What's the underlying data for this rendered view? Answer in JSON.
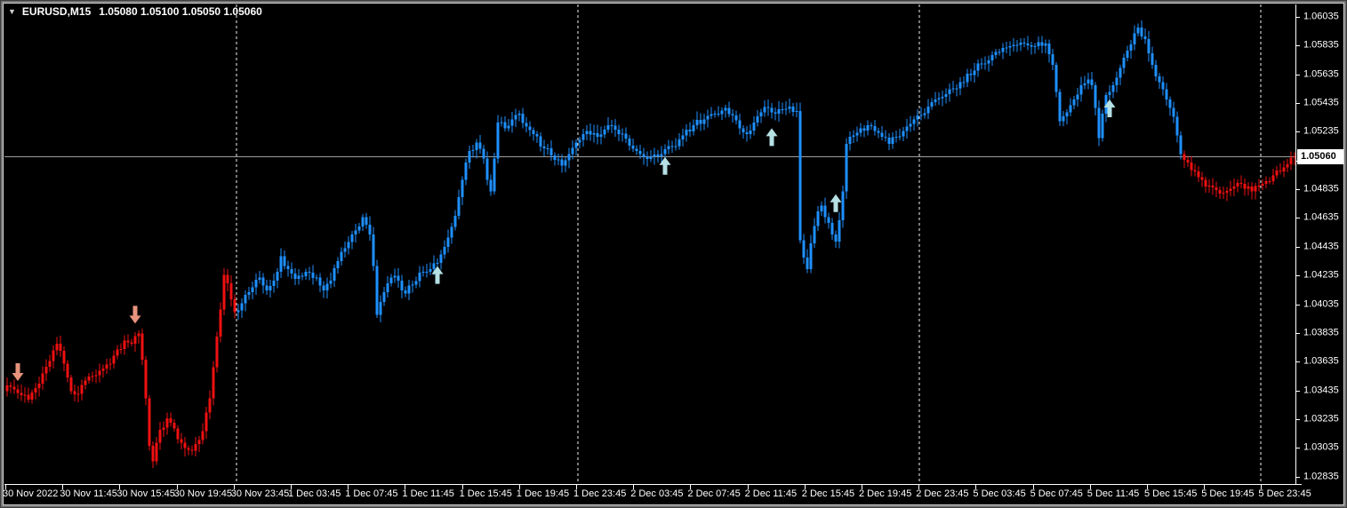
{
  "window": {
    "symbol": "EURUSD,M15",
    "ohlc_line": "1.05080 1.05100 1.05050 1.05060",
    "dropdown_icon": "▼"
  },
  "price_axis": {
    "current_price": "1.05060"
  },
  "chart_data": {
    "type": "candlestick",
    "symbol": "EURUSD",
    "timeframe": "M15",
    "ohlc_line": {
      "open": "1.05080",
      "high": "1.05100",
      "low": "1.05050",
      "close": "1.05060"
    },
    "y_axis": {
      "top_label": 1.06035,
      "bottom_label": 1.02835,
      "step": 0.002
    },
    "price_ticks": [
      "1.06035",
      "1.05835",
      "1.05635",
      "1.05435",
      "1.05235",
      "1.05035",
      "1.04835",
      "1.04635",
      "1.04435",
      "1.04235",
      "1.04035",
      "1.03835",
      "1.03635",
      "1.03435",
      "1.03235",
      "1.03035",
      "1.02835"
    ],
    "time_ticks": [
      "30 Nov 2022",
      "30 Nov 11:45",
      "30 Nov 15:45",
      "30 Nov 19:45",
      "30 Nov 23:45",
      "1 Dec 03:45",
      "1 Dec 07:45",
      "1 Dec 11:45",
      "1 Dec 15:45",
      "1 Dec 19:45",
      "1 Dec 23:45",
      "2 Dec 03:45",
      "2 Dec 07:45",
      "2 Dec 11:45",
      "2 Dec 15:45",
      "2 Dec 19:45",
      "2 Dec 23:45",
      "5 Dec 03:45",
      "5 Dec 07:45",
      "5 Dec 11:45",
      "5 Dec 15:45",
      "5 Dec 19:45",
      "5 Dec 23:45"
    ],
    "current_price": 1.0506,
    "bar_count": 363,
    "candles_per_time_tick": 16,
    "separators_at_candle": [
      64.5,
      160.5,
      256.5,
      352.5
    ],
    "color_segments": [
      {
        "from": 0,
        "to": 64,
        "trend": "bear"
      },
      {
        "from": 65,
        "to": 330,
        "trend": "bull"
      },
      {
        "from": 331,
        "to": 362,
        "trend": "bear"
      }
    ],
    "colors": {
      "bull": "#1e90ff",
      "bear": "#f01010",
      "up_arrow": "#b5e0e4",
      "down_arrow": "#e8937d",
      "separator": "#f2f2f2",
      "price_line": "#9e9e9e",
      "axis_text": "#ffffff",
      "background": "#000000",
      "price_tag_bg": "#ffffff",
      "price_tag_text": "#000000"
    },
    "arrows": [
      {
        "candle": 3,
        "dir": "down",
        "tip_price": 1.035
      },
      {
        "candle": 36,
        "dir": "down",
        "tip_price": 1.039
      },
      {
        "candle": 121,
        "dir": "up",
        "tip_price": 1.043
      },
      {
        "candle": 185,
        "dir": "up",
        "tip_price": 1.0506
      },
      {
        "candle": 215,
        "dir": "up",
        "tip_price": 1.0526
      },
      {
        "candle": 233,
        "dir": "up",
        "tip_price": 1.048
      },
      {
        "candle": 310,
        "dir": "up",
        "tip_price": 1.0546
      }
    ],
    "close_waypoints": [
      [
        0,
        1.0347
      ],
      [
        2,
        1.0344
      ],
      [
        4,
        1.034
      ],
      [
        6,
        1.0337
      ],
      [
        8,
        1.0345
      ],
      [
        11,
        1.036
      ],
      [
        14,
        1.0376
      ],
      [
        16,
        1.0362
      ],
      [
        18,
        1.0343
      ],
      [
        20,
        1.0341
      ],
      [
        23,
        1.0353
      ],
      [
        26,
        1.0357
      ],
      [
        29,
        1.0362
      ],
      [
        31,
        1.0372
      ],
      [
        33,
        1.0378
      ],
      [
        35,
        1.0376
      ],
      [
        37,
        1.0383
      ],
      [
        38,
        1.0365
      ],
      [
        39,
        1.0338
      ],
      [
        40,
        1.0305
      ],
      [
        41,
        1.0294
      ],
      [
        42,
        1.0307
      ],
      [
        43,
        1.0316
      ],
      [
        45,
        1.0324
      ],
      [
        47,
        1.0317
      ],
      [
        49,
        1.0307
      ],
      [
        51,
        1.0302
      ],
      [
        53,
        1.0306
      ],
      [
        55,
        1.0315
      ],
      [
        57,
        1.0338
      ],
      [
        59,
        1.0381
      ],
      [
        61,
        1.0424
      ],
      [
        62,
        1.0418
      ],
      [
        63,
        1.0407
      ],
      [
        64,
        1.0398
      ],
      [
        66,
        1.0404
      ],
      [
        68,
        1.0412
      ],
      [
        71,
        1.0422
      ],
      [
        73,
        1.0413
      ],
      [
        75,
        1.042
      ],
      [
        77,
        1.0437
      ],
      [
        79,
        1.0428
      ],
      [
        81,
        1.0421
      ],
      [
        84,
        1.0426
      ],
      [
        87,
        1.0422
      ],
      [
        89,
        1.0413
      ],
      [
        91,
        1.042
      ],
      [
        94,
        1.044
      ],
      [
        97,
        1.0452
      ],
      [
        100,
        1.0464
      ],
      [
        102,
        1.0452
      ],
      [
        103,
        1.043
      ],
      [
        104,
        1.0396
      ],
      [
        106,
        1.0412
      ],
      [
        108,
        1.0422
      ],
      [
        110,
        1.042
      ],
      [
        112,
        1.0411
      ],
      [
        114,
        1.0417
      ],
      [
        117,
        1.0426
      ],
      [
        120,
        1.0432
      ],
      [
        122,
        1.0438
      ],
      [
        124,
        1.045
      ],
      [
        126,
        1.0465
      ],
      [
        128,
        1.049
      ],
      [
        130,
        1.051
      ],
      [
        132,
        1.0516
      ],
      [
        134,
        1.0505
      ],
      [
        135,
        1.049
      ],
      [
        136,
        1.0482
      ],
      [
        137,
        1.0505
      ],
      [
        138,
        1.053
      ],
      [
        140,
        1.0526
      ],
      [
        142,
        1.0532
      ],
      [
        144,
        1.0536
      ],
      [
        146,
        1.0527
      ],
      [
        148,
        1.0522
      ],
      [
        151,
        1.0512
      ],
      [
        154,
        1.0504
      ],
      [
        156,
        1.05
      ],
      [
        158,
        1.0508
      ],
      [
        160,
        1.0516
      ],
      [
        163,
        1.0524
      ],
      [
        166,
        1.052
      ],
      [
        169,
        1.0528
      ],
      [
        172,
        1.0522
      ],
      [
        175,
        1.0514
      ],
      [
        178,
        1.0508
      ],
      [
        181,
        1.0506
      ],
      [
        184,
        1.0508
      ],
      [
        187,
        1.0513
      ],
      [
        190,
        1.0521
      ],
      [
        193,
        1.0528
      ],
      [
        196,
        1.0532
      ],
      [
        199,
        1.0536
      ],
      [
        202,
        1.054
      ],
      [
        204,
        1.0535
      ],
      [
        206,
        1.0526
      ],
      [
        208,
        1.0522
      ],
      [
        210,
        1.053
      ],
      [
        212,
        1.0537
      ],
      [
        214,
        1.054
      ],
      [
        216,
        1.0536
      ],
      [
        218,
        1.0539
      ],
      [
        220,
        1.0541
      ],
      [
        222,
        1.0538
      ],
      [
        223,
        1.0448
      ],
      [
        224,
        1.0436
      ],
      [
        225,
        1.0428
      ],
      [
        226,
        1.0446
      ],
      [
        227,
        1.0458
      ],
      [
        228,
        1.0468
      ],
      [
        229,
        1.0472
      ],
      [
        230,
        1.0464
      ],
      [
        231,
        1.046
      ],
      [
        232,
        1.0452
      ],
      [
        233,
        1.0447
      ],
      [
        234,
        1.0462
      ],
      [
        235,
        1.0482
      ],
      [
        236,
        1.0515
      ],
      [
        238,
        1.0521
      ],
      [
        240,
        1.0526
      ],
      [
        242,
        1.0528
      ],
      [
        244,
        1.0524
      ],
      [
        246,
        1.052
      ],
      [
        248,
        1.0515
      ],
      [
        250,
        1.052
      ],
      [
        252,
        1.0524
      ],
      [
        254,
        1.0529
      ],
      [
        256,
        1.0535
      ],
      [
        259,
        1.0541
      ],
      [
        262,
        1.0547
      ],
      [
        265,
        1.0553
      ],
      [
        268,
        1.0558
      ],
      [
        271,
        1.0563
      ],
      [
        274,
        1.0571
      ],
      [
        277,
        1.0577
      ],
      [
        280,
        1.0582
      ],
      [
        283,
        1.0584
      ],
      [
        286,
        1.0585
      ],
      [
        289,
        1.0583
      ],
      [
        292,
        1.0585
      ],
      [
        294,
        1.057
      ],
      [
        296,
        1.0531
      ],
      [
        298,
        1.0537
      ],
      [
        300,
        1.0546
      ],
      [
        302,
        1.0556
      ],
      [
        304,
        1.056
      ],
      [
        305,
        1.0556
      ],
      [
        306,
        1.054
      ],
      [
        307,
        1.0519
      ],
      [
        308,
        1.0536
      ],
      [
        309,
        1.0549
      ],
      [
        311,
        1.0556
      ],
      [
        313,
        1.0568
      ],
      [
        315,
        1.058
      ],
      [
        317,
        1.0592
      ],
      [
        318,
        1.0596
      ],
      [
        319,
        1.059
      ],
      [
        320,
        1.0588
      ],
      [
        321,
        1.0578
      ],
      [
        322,
        1.057
      ],
      [
        324,
        1.0558
      ],
      [
        326,
        1.0546
      ],
      [
        327,
        1.054
      ],
      [
        328,
        1.0534
      ],
      [
        329,
        1.0521
      ],
      [
        330,
        1.0508
      ],
      [
        332,
        1.0502
      ],
      [
        334,
        1.0496
      ],
      [
        336,
        1.049
      ],
      [
        338,
        1.0486
      ],
      [
        340,
        1.0483
      ],
      [
        342,
        1.0481
      ],
      [
        344,
        1.0484
      ],
      [
        346,
        1.0488
      ],
      [
        348,
        1.0484
      ],
      [
        350,
        1.0482
      ],
      [
        352,
        1.0486
      ],
      [
        354,
        1.0489
      ],
      [
        356,
        1.0493
      ],
      [
        358,
        1.0496
      ],
      [
        360,
        1.0501
      ],
      [
        362,
        1.0506
      ]
    ]
  }
}
